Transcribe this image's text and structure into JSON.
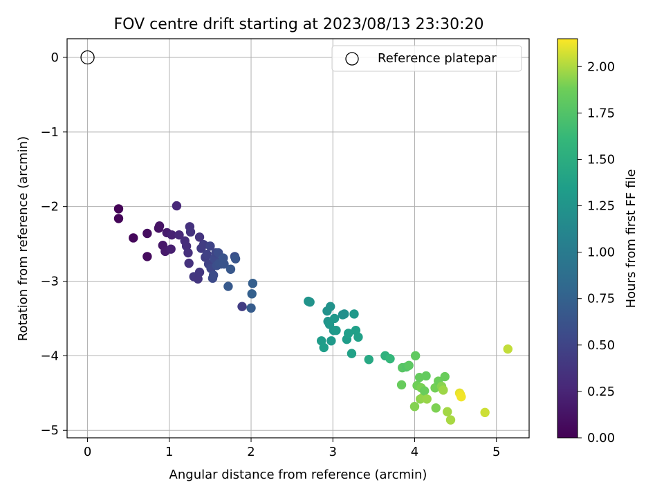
{
  "chart_data": {
    "type": "scatter",
    "title": "FOV centre drift starting at 2023/08/13 23:30:20",
    "xlabel": "Angular distance from reference (arcmin)",
    "ylabel": "Rotation from reference (arcmin)",
    "xlim": [
      -0.25,
      5.4
    ],
    "ylim": [
      -5.1,
      0.25
    ],
    "xticks": [
      0,
      1,
      2,
      3,
      4,
      5
    ],
    "yticks": [
      0,
      -1,
      -2,
      -3,
      -4,
      -5
    ],
    "xtick_labels": [
      "0",
      "1",
      "2",
      "3",
      "4",
      "5"
    ],
    "ytick_labels": [
      "0",
      "−1",
      "−2",
      "−3",
      "−4",
      "−5"
    ],
    "grid": true,
    "legend": {
      "position": "top-right",
      "label": "Reference platepar"
    },
    "reference_point": {
      "x": 0,
      "y": 0
    },
    "colorbar": {
      "label": "Hours from first FF file",
      "colormap": "viridis",
      "range": [
        0.0,
        2.15
      ],
      "ticks": [
        0.0,
        0.25,
        0.5,
        0.75,
        1.0,
        1.25,
        1.5,
        1.75,
        2.0
      ],
      "tick_labels": [
        "0.00",
        "0.25",
        "0.50",
        "0.75",
        "1.00",
        "1.25",
        "1.50",
        "1.75",
        "2.00"
      ]
    },
    "points": [
      [
        0.38,
        -2.03,
        0.02
      ],
      [
        0.38,
        -2.16,
        0.03
      ],
      [
        0.56,
        -2.42,
        0.05
      ],
      [
        0.73,
        -2.67,
        0.07
      ],
      [
        0.73,
        -2.36,
        0.09
      ],
      [
        0.87,
        -2.29,
        0.11
      ],
      [
        0.88,
        -2.26,
        0.13
      ],
      [
        0.92,
        -2.52,
        0.15
      ],
      [
        0.95,
        -2.6,
        0.17
      ],
      [
        0.97,
        -2.35,
        0.19
      ],
      [
        1.02,
        -2.57,
        0.21
      ],
      [
        1.03,
        -2.38,
        0.23
      ],
      [
        1.09,
        -1.99,
        0.27
      ],
      [
        1.12,
        -2.38,
        0.28
      ],
      [
        1.19,
        -2.46,
        0.31
      ],
      [
        1.21,
        -2.53,
        0.32
      ],
      [
        1.23,
        -2.62,
        0.33
      ],
      [
        1.24,
        -2.76,
        0.35
      ],
      [
        1.25,
        -2.27,
        0.34
      ],
      [
        1.26,
        -2.34,
        0.36
      ],
      [
        1.3,
        -2.94,
        0.4
      ],
      [
        1.35,
        -2.97,
        0.38
      ],
      [
        1.37,
        -2.88,
        0.39
      ],
      [
        1.37,
        -2.41,
        0.37
      ],
      [
        1.39,
        -2.56,
        0.42
      ],
      [
        1.42,
        -2.51,
        0.43
      ],
      [
        1.44,
        -2.68,
        0.45
      ],
      [
        1.46,
        -2.64,
        0.47
      ],
      [
        1.48,
        -2.77,
        0.48
      ],
      [
        1.5,
        -2.53,
        0.49
      ],
      [
        1.51,
        -2.83,
        0.52
      ],
      [
        1.53,
        -2.96,
        0.55
      ],
      [
        1.54,
        -2.92,
        0.56
      ],
      [
        1.55,
        -2.7,
        0.54
      ],
      [
        1.57,
        -2.62,
        0.51
      ],
      [
        1.58,
        -2.79,
        0.58
      ],
      [
        1.6,
        -2.62,
        0.57
      ],
      [
        1.61,
        -2.76,
        0.6
      ],
      [
        1.63,
        -2.77,
        0.61
      ],
      [
        1.66,
        -2.69,
        0.62
      ],
      [
        1.67,
        -2.77,
        0.63
      ],
      [
        1.72,
        -3.07,
        0.68
      ],
      [
        1.75,
        -2.84,
        0.66
      ],
      [
        1.8,
        -2.67,
        0.59
      ],
      [
        1.81,
        -2.7,
        0.64
      ],
      [
        1.89,
        -3.34,
        0.44
      ],
      [
        2.0,
        -3.36,
        0.7
      ],
      [
        2.01,
        -3.17,
        0.74
      ],
      [
        2.02,
        -3.03,
        0.73
      ],
      [
        2.7,
        -3.27,
        1.26
      ],
      [
        2.72,
        -3.28,
        1.24
      ],
      [
        2.86,
        -3.8,
        1.32
      ],
      [
        2.89,
        -3.89,
        1.34
      ],
      [
        2.93,
        -3.4,
        1.22
      ],
      [
        2.94,
        -3.54,
        1.25
      ],
      [
        2.96,
        -3.58,
        1.28
      ],
      [
        2.97,
        -3.34,
        1.23
      ],
      [
        2.98,
        -3.8,
        1.3
      ],
      [
        3.01,
        -3.66,
        1.27
      ],
      [
        3.02,
        -3.5,
        1.29
      ],
      [
        3.04,
        -3.66,
        1.31
      ],
      [
        3.12,
        -3.45,
        1.21
      ],
      [
        3.14,
        -3.44,
        1.2
      ],
      [
        3.17,
        -3.78,
        1.33
      ],
      [
        3.19,
        -3.7,
        1.35
      ],
      [
        3.23,
        -3.97,
        1.38
      ],
      [
        3.26,
        -3.44,
        1.3
      ],
      [
        3.28,
        -3.66,
        1.36
      ],
      [
        3.31,
        -3.75,
        1.37
      ],
      [
        3.44,
        -4.05,
        1.45
      ],
      [
        3.64,
        -4.0,
        1.55
      ],
      [
        3.7,
        -4.04,
        1.6
      ],
      [
        3.84,
        -4.39,
        1.85
      ],
      [
        3.85,
        -4.16,
        1.78
      ],
      [
        3.9,
        -4.15,
        1.76
      ],
      [
        3.93,
        -4.13,
        1.8
      ],
      [
        4.0,
        -4.68,
        1.92
      ],
      [
        4.01,
        -4.0,
        1.82
      ],
      [
        4.03,
        -4.4,
        1.88
      ],
      [
        4.06,
        -4.29,
        1.84
      ],
      [
        4.07,
        -4.58,
        1.94
      ],
      [
        4.08,
        -4.43,
        1.9
      ],
      [
        4.1,
        -4.56,
        1.95
      ],
      [
        4.12,
        -4.47,
        1.86
      ],
      [
        4.14,
        -4.27,
        1.83
      ],
      [
        4.15,
        -4.58,
        1.96
      ],
      [
        4.25,
        -4.43,
        1.89
      ],
      [
        4.26,
        -4.7,
        1.91
      ],
      [
        4.29,
        -4.34,
        1.87
      ],
      [
        4.33,
        -4.41,
        1.93
      ],
      [
        4.35,
        -4.46,
        1.97
      ],
      [
        4.37,
        -4.28,
        1.86
      ],
      [
        4.4,
        -4.75,
        1.98
      ],
      [
        4.44,
        -4.86,
        1.99
      ],
      [
        4.55,
        -4.5,
        2.1
      ],
      [
        4.56,
        -4.52,
        2.12
      ],
      [
        4.57,
        -4.55,
        2.13
      ],
      [
        4.86,
        -4.76,
        2.06
      ],
      [
        5.14,
        -3.91,
        2.04
      ]
    ]
  }
}
